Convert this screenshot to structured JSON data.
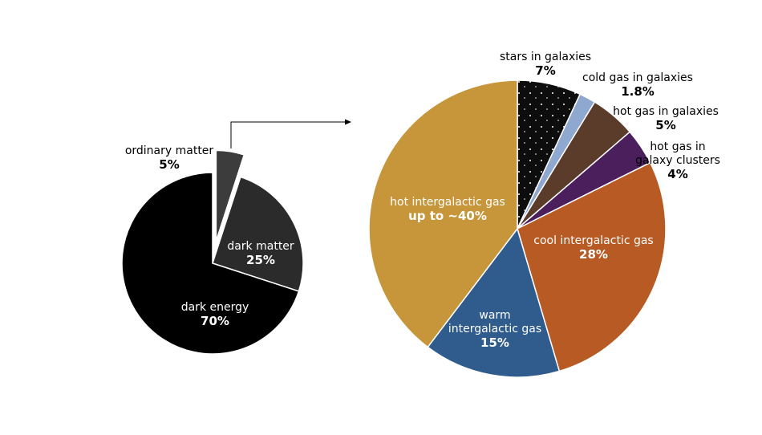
{
  "chart_data": [
    {
      "type": "pie",
      "categories": [
        "ordinary matter",
        "dark matter",
        "dark energy"
      ],
      "values": [
        5,
        25,
        70
      ],
      "value_labels": [
        "5%",
        "25%",
        "70%"
      ],
      "colors": [
        "#3c3c3c",
        "#2b2b2b",
        "#000000"
      ]
    },
    {
      "type": "pie",
      "categories": [
        "stars in galaxies",
        "cold gas in galaxies",
        "hot gas in galaxies",
        "hot gas in galaxy clusters",
        "cool intergalactic gas",
        "warm intergalactic gas",
        "hot intergalactic gas"
      ],
      "values": [
        7,
        1.8,
        5,
        4,
        28,
        15,
        40
      ],
      "value_labels": [
        "7%",
        "1.8%",
        "5%",
        "4%",
        "28%",
        "15%",
        "up to ~40%"
      ],
      "colors": [
        "#0d0d0d",
        "#8ea8cf",
        "#5b3b2a",
        "#4a1f5c",
        "#b85a24",
        "#2f5c8c",
        "#c8963a"
      ]
    }
  ]
}
